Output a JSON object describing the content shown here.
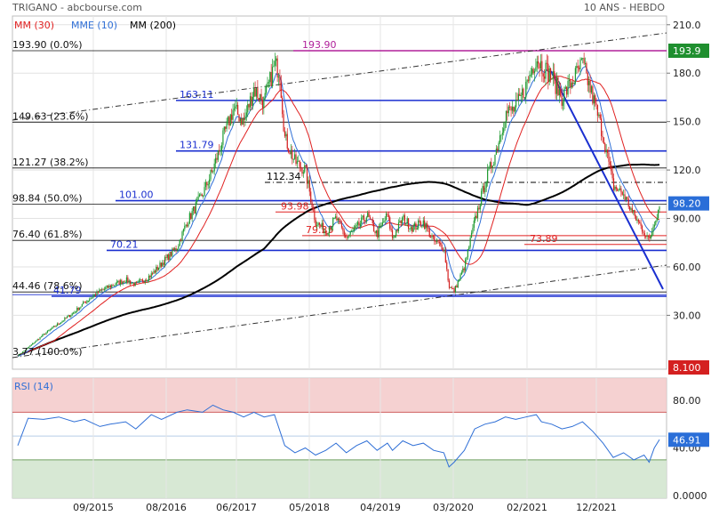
{
  "header": {
    "title": "TRIGANO - abcbourse.com",
    "period": "10 ANS - HEBDO",
    "legend": [
      {
        "label": "MM (30)",
        "color": "#e02020"
      },
      {
        "label": "MME (10)",
        "color": "#2f6fd6"
      },
      {
        "label": "MM (200)",
        "color": "#000000"
      }
    ]
  },
  "chart_data": [
    {
      "type": "candlestick",
      "y_ticks": [
        "210.0",
        "180.0",
        "150.0",
        "120.0",
        "90.00",
        "60.00",
        "30.00"
      ],
      "ylim": [
        3.77,
        210
      ],
      "x_ticks": [
        "09/2015",
        "08/2016",
        "06/2017",
        "05/2018",
        "04/2019",
        "03/2020",
        "02/2021",
        "12/2021"
      ],
      "fibonacci": [
        {
          "label": "193.90 (0.0%)",
          "value": 193.9
        },
        {
          "label": "149.63 (23.6%)",
          "value": 149.63
        },
        {
          "label": "121.27 (38.2%)",
          "value": 121.27
        },
        {
          "label": "98.84 (50.0%)",
          "value": 98.84
        },
        {
          "label": "76.40 (61.8%)",
          "value": 76.4
        },
        {
          "label": "44.46 (78.6%)",
          "value": 44.46
        },
        {
          "label": "3.77 (100.0%)",
          "value": 3.77
        }
      ],
      "levels": [
        {
          "label": "193.90",
          "value": 193.9,
          "color": "#b0209a"
        },
        {
          "label": "163.11",
          "value": 163.11,
          "color": "#1a2fd0"
        },
        {
          "label": "131.79",
          "value": 131.79,
          "color": "#1a2fd0"
        },
        {
          "label": "112.34",
          "value": 112.34,
          "color": "#000000"
        },
        {
          "label": "101.00",
          "value": 101.0,
          "color": "#1a2fd0"
        },
        {
          "label": "93.98",
          "value": 93.98,
          "color": "#e02020"
        },
        {
          "label": "79.35",
          "value": 79.35,
          "color": "#e02020"
        },
        {
          "label": "73.89",
          "value": 73.89,
          "color": "#e02020"
        },
        {
          "label": "70.21",
          "value": 70.21,
          "color": "#1a2fd0"
        },
        {
          "label": "41.79",
          "value": 41.79,
          "color": "#1a2fd0"
        }
      ],
      "close_badges": [
        {
          "label": "193.9",
          "value": 193.9,
          "color": "#1f8f2f"
        },
        {
          "label": "98.20",
          "value": 98.2,
          "color": "#2a6ed8"
        }
      ],
      "extra_badge": {
        "label": "8.100",
        "color": "#d42020"
      },
      "price_path": [
        [
          0,
          5
        ],
        [
          2,
          10
        ],
        [
          5,
          18
        ],
        [
          8,
          25
        ],
        [
          11,
          32
        ],
        [
          13,
          38
        ],
        [
          16,
          45
        ],
        [
          18,
          48
        ],
        [
          21,
          52
        ],
        [
          23,
          49
        ],
        [
          26,
          55
        ],
        [
          28,
          62
        ],
        [
          31,
          72
        ],
        [
          33,
          88
        ],
        [
          36,
          105
        ],
        [
          38,
          120
        ],
        [
          40,
          140
        ],
        [
          42,
          158
        ],
        [
          44,
          150
        ],
        [
          46,
          170
        ],
        [
          48,
          162
        ],
        [
          50,
          185
        ],
        [
          51,
          182
        ],
        [
          52,
          140
        ],
        [
          54,
          125
        ],
        [
          56,
          120
        ],
        [
          58,
          88
        ],
        [
          60,
          82
        ],
        [
          62,
          90
        ],
        [
          64,
          78
        ],
        [
          66,
          84
        ],
        [
          68,
          92
        ],
        [
          70,
          80
        ],
        [
          72,
          92
        ],
        [
          73,
          78
        ],
        [
          75,
          90
        ],
        [
          77,
          84
        ],
        [
          79,
          88
        ],
        [
          81,
          76
        ],
        [
          83,
          72
        ],
        [
          84,
          48
        ],
        [
          85,
          45
        ],
        [
          87,
          60
        ],
        [
          89,
          88
        ],
        [
          91,
          112
        ],
        [
          93,
          130
        ],
        [
          95,
          155
        ],
        [
          97,
          158
        ],
        [
          99,
          172
        ],
        [
          101,
          190
        ],
        [
          102,
          185
        ],
        [
          104,
          178
        ],
        [
          106,
          165
        ],
        [
          108,
          175
        ],
        [
          110,
          186
        ],
        [
          112,
          165
        ],
        [
          114,
          142
        ],
        [
          116,
          110
        ],
        [
          118,
          105
        ],
        [
          120,
          92
        ],
        [
          122,
          82
        ],
        [
          123,
          76
        ],
        [
          124,
          88
        ],
        [
          125,
          98
        ]
      ],
      "rsi": {
        "label": "RSI (14)",
        "value_badge": "46.91",
        "y_ticks": [
          "80.00",
          "40.00",
          "0.0000"
        ],
        "overbought": 70,
        "oversold": 30,
        "path": [
          [
            0,
            42
          ],
          [
            2,
            65
          ],
          [
            5,
            64
          ],
          [
            8,
            66
          ],
          [
            11,
            62
          ],
          [
            13,
            64
          ],
          [
            16,
            58
          ],
          [
            18,
            60
          ],
          [
            21,
            62
          ],
          [
            23,
            56
          ],
          [
            26,
            68
          ],
          [
            28,
            64
          ],
          [
            31,
            70
          ],
          [
            33,
            72
          ],
          [
            36,
            70
          ],
          [
            38,
            76
          ],
          [
            40,
            72
          ],
          [
            42,
            70
          ],
          [
            44,
            66
          ],
          [
            46,
            70
          ],
          [
            48,
            66
          ],
          [
            50,
            68
          ],
          [
            52,
            42
          ],
          [
            54,
            36
          ],
          [
            56,
            40
          ],
          [
            58,
            34
          ],
          [
            60,
            38
          ],
          [
            62,
            44
          ],
          [
            64,
            36
          ],
          [
            66,
            42
          ],
          [
            68,
            46
          ],
          [
            70,
            38
          ],
          [
            72,
            44
          ],
          [
            73,
            38
          ],
          [
            75,
            46
          ],
          [
            77,
            42
          ],
          [
            79,
            44
          ],
          [
            81,
            38
          ],
          [
            83,
            36
          ],
          [
            84,
            24
          ],
          [
            85,
            28
          ],
          [
            87,
            38
          ],
          [
            89,
            56
          ],
          [
            91,
            60
          ],
          [
            93,
            62
          ],
          [
            95,
            66
          ],
          [
            97,
            64
          ],
          [
            99,
            66
          ],
          [
            101,
            68
          ],
          [
            102,
            62
          ],
          [
            104,
            60
          ],
          [
            106,
            56
          ],
          [
            108,
            58
          ],
          [
            110,
            62
          ],
          [
            112,
            54
          ],
          [
            114,
            44
          ],
          [
            116,
            32
          ],
          [
            118,
            36
          ],
          [
            120,
            30
          ],
          [
            122,
            34
          ],
          [
            123,
            28
          ],
          [
            124,
            40
          ],
          [
            125,
            47
          ]
        ]
      }
    }
  ]
}
